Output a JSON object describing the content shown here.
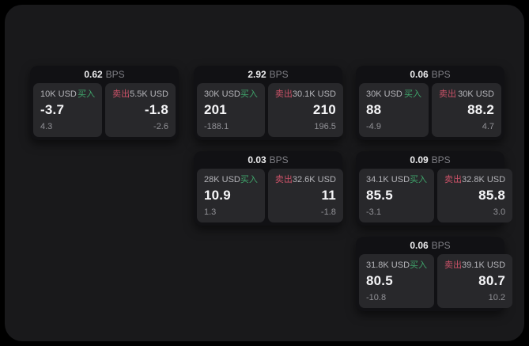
{
  "theme": {
    "outer_bg": "#000000",
    "panel_bg": "#19191b",
    "card_bg": "#111114",
    "tile_bg": "#28282b",
    "buy_color": "#3fa56b",
    "sell_color": "#cb5268"
  },
  "labels": {
    "bps_unit": "BPS",
    "buy": "买入",
    "sell": "卖出"
  },
  "cards": [
    {
      "bps": "0.62",
      "row": 1,
      "col": 1,
      "buy": {
        "size": "10K USD",
        "price": "-3.7",
        "delta": "4.3"
      },
      "sell": {
        "size": "5.5K USD",
        "price": "-1.8",
        "delta": "-2.6"
      }
    },
    {
      "bps": "2.92",
      "row": 1,
      "col": 2,
      "buy": {
        "size": "30K USD",
        "price": "201",
        "delta": "-188.1"
      },
      "sell": {
        "size": "30.1K USD",
        "price": "210",
        "delta": "196.5"
      }
    },
    {
      "bps": "0.06",
      "row": 1,
      "col": 3,
      "buy": {
        "size": "30K USD",
        "price": "88",
        "delta": "-4.9"
      },
      "sell": {
        "size": "30K USD",
        "price": "88.2",
        "delta": "4.7"
      }
    },
    {
      "bps": "0.03",
      "row": 2,
      "col": 2,
      "buy": {
        "size": "28K USD",
        "price": "10.9",
        "delta": "1.3"
      },
      "sell": {
        "size": "32.6K USD",
        "price": "11",
        "delta": "-1.8"
      }
    },
    {
      "bps": "0.09",
      "row": 2,
      "col": 3,
      "buy": {
        "size": "34.1K USD",
        "price": "85.5",
        "delta": "-3.1"
      },
      "sell": {
        "size": "32.8K USD",
        "price": "85.8",
        "delta": "3.0"
      }
    },
    {
      "bps": "0.06",
      "row": 3,
      "col": 3,
      "buy": {
        "size": "31.8K USD",
        "price": "80.5",
        "delta": "-10.8"
      },
      "sell": {
        "size": "39.1K USD",
        "price": "80.7",
        "delta": "10.2"
      }
    }
  ]
}
